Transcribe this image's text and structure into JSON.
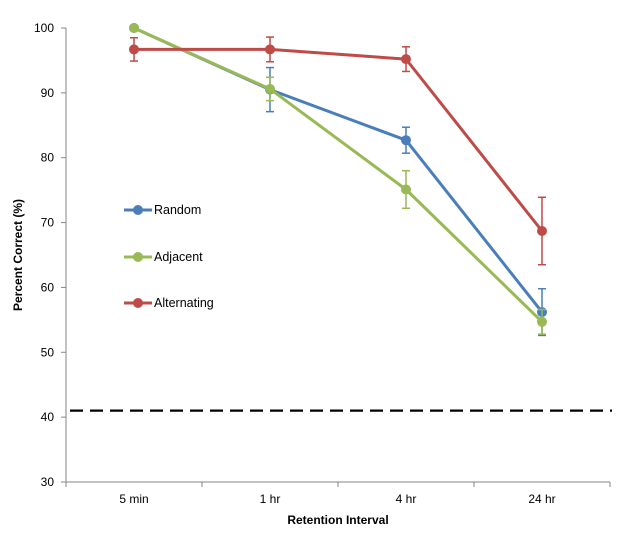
{
  "chart_data": {
    "type": "line",
    "title": "",
    "xlabel": "Retention Interval",
    "ylabel": "Percent Correct (%)",
    "categories": [
      "5 min",
      "1 hr",
      "4 hr",
      "24 hr"
    ],
    "ylim": [
      30,
      100
    ],
    "yticks": [
      "30",
      "40",
      "50",
      "60",
      "70",
      "80",
      "90",
      "100"
    ],
    "grid": false,
    "legend_position": "left-middle",
    "reference_line": {
      "y": 41,
      "style": "dashed",
      "color": "#000000"
    },
    "series": [
      {
        "name": "Random",
        "color": "#4a7ebb",
        "values": [
          100,
          90.5,
          82.7,
          56.2
        ],
        "errors": [
          null,
          3.4,
          2.0,
          3.6
        ]
      },
      {
        "name": "Adjacent",
        "color": "#98b954",
        "values": [
          100,
          90.6,
          75.1,
          54.7
        ],
        "errors": [
          null,
          1.8,
          2.9,
          1.9
        ]
      },
      {
        "name": "Alternating",
        "color": "#be4b48",
        "values": [
          96.7,
          96.7,
          95.2,
          68.7
        ],
        "errors": [
          1.8,
          1.9,
          1.9,
          5.2
        ]
      }
    ]
  }
}
